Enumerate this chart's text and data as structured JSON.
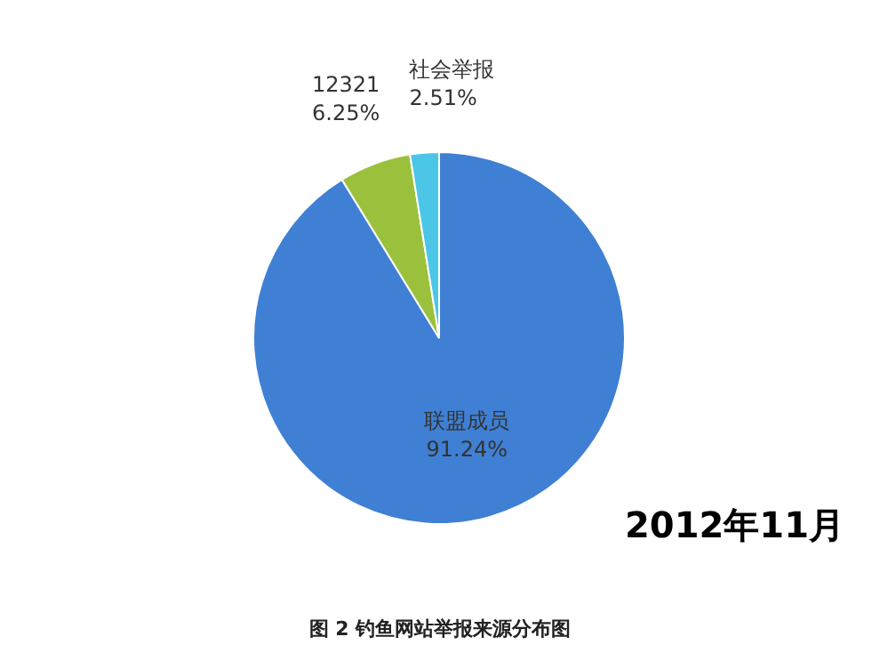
{
  "chart_data": {
    "type": "pie",
    "title": "图 2 钓鱼网站举报来源分布图",
    "categories": [
      "联盟成员",
      "12321",
      "社会举报"
    ],
    "values": [
      91.24,
      6.25,
      2.51
    ],
    "value_labels": [
      "91.24%",
      "6.25%",
      "2.51%"
    ],
    "colors": [
      "#3f80d4",
      "#9bc13c",
      "#4cc6e6"
    ],
    "annotations": [
      "2012年11月"
    ],
    "legend": false
  }
}
